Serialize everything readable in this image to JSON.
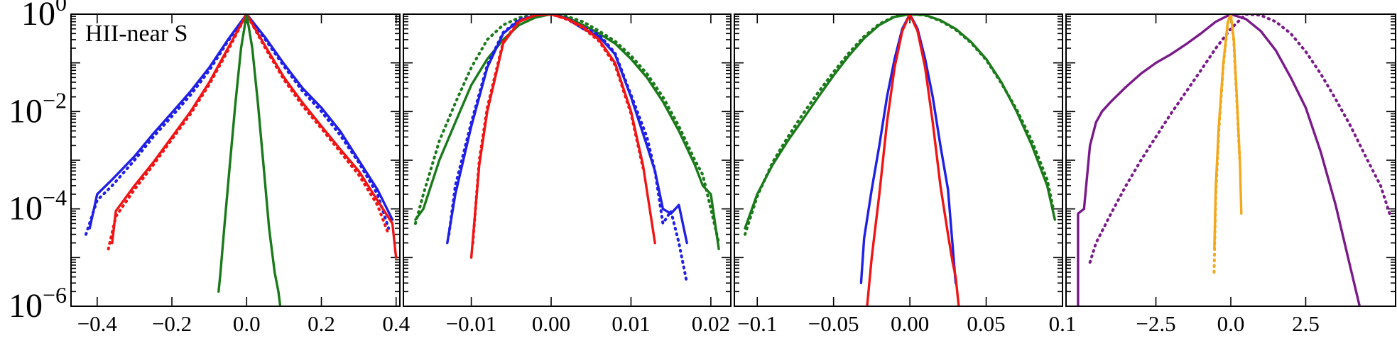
{
  "colors": {
    "blue": "#1f1fe6",
    "red": "#f01414",
    "green": "#1a7a1a",
    "purple": "#7a1a8a",
    "orange": "#f2a81d"
  },
  "chart_data": [
    {
      "type": "line",
      "panel": "1",
      "annotation": "HII-near S",
      "y_scale": "log",
      "ylim": [
        1e-06,
        1
      ],
      "xlim": [
        -0.47,
        0.41
      ],
      "y_ticks": [
        {
          "value": 1,
          "base": "10",
          "exp": "0"
        },
        {
          "value": 0.01,
          "base": "10",
          "exp": "−2"
        },
        {
          "value": 0.0001,
          "base": "10",
          "exp": "−4"
        },
        {
          "value": 1e-06,
          "base": "10",
          "exp": "−6"
        }
      ],
      "x_ticks": [
        {
          "value": -0.4,
          "label": "−0.4"
        },
        {
          "value": -0.2,
          "label": "−0.2"
        },
        {
          "value": 0.0,
          "label": "0.0"
        },
        {
          "value": 0.2,
          "label": "0.2"
        },
        {
          "value": 0.4,
          "label": "0.4"
        }
      ],
      "series": [
        {
          "color": "blue",
          "style": "solid",
          "x": [
            -0.42,
            -0.4,
            -0.36,
            -0.3,
            -0.25,
            -0.2,
            -0.15,
            -0.1,
            -0.05,
            0.0,
            0.05,
            0.1,
            0.15,
            0.2,
            0.25,
            0.3,
            0.35,
            0.39
          ],
          "y": [
            4e-05,
            0.0002,
            0.0004,
            0.0012,
            0.0035,
            0.0095,
            0.026,
            0.08,
            0.3,
            1,
            0.33,
            0.095,
            0.03,
            0.012,
            0.004,
            0.001,
            0.00025,
            6e-05
          ]
        },
        {
          "color": "blue",
          "style": "dotted",
          "x": [
            -0.43,
            -0.4,
            -0.36,
            -0.3,
            -0.25,
            -0.2,
            -0.15,
            -0.1,
            -0.05,
            0.0,
            0.05,
            0.1,
            0.15,
            0.2,
            0.25,
            0.3,
            0.35,
            0.38
          ],
          "y": [
            3e-05,
            0.00015,
            0.0003,
            0.001,
            0.003,
            0.008,
            0.022,
            0.07,
            0.28,
            1,
            0.3,
            0.085,
            0.026,
            0.01,
            0.0033,
            0.0009,
            0.0002,
            4e-05
          ]
        },
        {
          "color": "red",
          "style": "solid",
          "x": [
            -0.36,
            -0.35,
            -0.3,
            -0.25,
            -0.2,
            -0.15,
            -0.1,
            -0.05,
            0.0,
            0.05,
            0.1,
            0.15,
            0.2,
            0.25,
            0.3,
            0.35,
            0.39,
            0.4
          ],
          "y": [
            2e-05,
            9e-05,
            0.0003,
            0.0009,
            0.003,
            0.01,
            0.04,
            0.2,
            1,
            0.22,
            0.05,
            0.015,
            0.005,
            0.0017,
            0.0006,
            0.00015,
            5e-05,
            1e-05
          ]
        },
        {
          "color": "red",
          "style": "dotted",
          "x": [
            -0.37,
            -0.35,
            -0.3,
            -0.25,
            -0.2,
            -0.15,
            -0.1,
            -0.05,
            0.0,
            0.05,
            0.1,
            0.15,
            0.2,
            0.25,
            0.3,
            0.35,
            0.38
          ],
          "y": [
            1.5e-05,
            7e-05,
            0.00025,
            0.0008,
            0.0027,
            0.009,
            0.036,
            0.18,
            1,
            0.2,
            0.045,
            0.013,
            0.0045,
            0.0015,
            0.0005,
            0.00012,
            3e-05
          ]
        },
        {
          "color": "green",
          "style": "solid",
          "x": [
            -0.075,
            -0.07,
            -0.06,
            -0.045,
            -0.03,
            -0.015,
            0.0,
            0.015,
            0.03,
            0.045,
            0.06,
            0.07,
            0.075,
            0.085,
            0.09
          ],
          "y": [
            2e-06,
            5e-06,
            4e-05,
            0.0008,
            0.015,
            0.2,
            1,
            0.2,
            0.015,
            0.0008,
            4e-05,
            1e-05,
            5e-06,
            2e-06,
            1e-06
          ]
        }
      ]
    },
    {
      "type": "line",
      "panel": "2",
      "y_scale": "log",
      "ylim": [
        1e-06,
        1
      ],
      "xlim": [
        -0.0185,
        0.0225
      ],
      "x_ticks": [
        {
          "value": -0.01,
          "label": "−0.01"
        },
        {
          "value": 0.0,
          "label": "0.00"
        },
        {
          "value": 0.01,
          "label": "0.01"
        },
        {
          "value": 0.02,
          "label": "0.02"
        }
      ],
      "series": [
        {
          "color": "green",
          "style": "solid",
          "x": [
            -0.017,
            -0.016,
            -0.014,
            -0.012,
            -0.01,
            -0.008,
            -0.006,
            -0.004,
            -0.002,
            0.0,
            0.002,
            0.004,
            0.006,
            0.008,
            0.01,
            0.012,
            0.014,
            0.016,
            0.018,
            0.019,
            0.02,
            0.021
          ],
          "y": [
            6e-05,
            0.0001,
            0.001,
            0.006,
            0.035,
            0.12,
            0.3,
            0.6,
            0.85,
            1,
            0.85,
            0.6,
            0.4,
            0.25,
            0.12,
            0.05,
            0.016,
            0.004,
            0.0008,
            0.0003,
            0.0002,
            1.5e-05
          ]
        },
        {
          "color": "green",
          "style": "dotted",
          "x": [
            -0.017,
            -0.016,
            -0.014,
            -0.012,
            -0.01,
            -0.008,
            -0.006,
            -0.004,
            -0.002,
            0.0,
            0.002,
            0.004,
            0.006,
            0.008,
            0.01,
            0.012,
            0.014,
            0.016,
            0.018,
            0.019,
            0.02,
            0.021
          ],
          "y": [
            5e-05,
            0.0002,
            0.0025,
            0.015,
            0.08,
            0.3,
            0.6,
            0.85,
            0.98,
            1,
            0.9,
            0.7,
            0.45,
            0.28,
            0.14,
            0.06,
            0.02,
            0.005,
            0.001,
            0.0005,
            0.0001,
            2e-05
          ]
        },
        {
          "color": "blue",
          "style": "solid",
          "x": [
            -0.013,
            -0.012,
            -0.01,
            -0.008,
            -0.006,
            -0.004,
            -0.002,
            0.0,
            0.002,
            0.004,
            0.006,
            0.008,
            0.01,
            0.012,
            0.013,
            0.014,
            0.015,
            0.016,
            0.017
          ],
          "y": [
            2e-05,
            0.0002,
            0.005,
            0.08,
            0.4,
            0.75,
            0.95,
            1,
            0.8,
            0.5,
            0.35,
            0.15,
            0.02,
            0.002,
            0.0006,
            0.0001,
            8e-05,
            0.00012,
            2e-05
          ]
        },
        {
          "color": "blue",
          "style": "dotted",
          "x": [
            -0.0128,
            -0.012,
            -0.01,
            -0.008,
            -0.006,
            -0.004,
            -0.002,
            0.0,
            0.002,
            0.004,
            0.006,
            0.008,
            0.01,
            0.012,
            0.013,
            0.014,
            0.015,
            0.016,
            0.017
          ],
          "y": [
            3e-05,
            0.0003,
            0.006,
            0.09,
            0.42,
            0.78,
            0.96,
            1,
            0.82,
            0.55,
            0.38,
            0.16,
            0.022,
            0.003,
            0.0006,
            5e-05,
            9e-05,
            2e-05,
            3e-06
          ]
        },
        {
          "color": "red",
          "style": "solid",
          "x": [
            -0.01,
            -0.009,
            -0.008,
            -0.006,
            -0.004,
            -0.002,
            0.0,
            0.002,
            0.004,
            0.006,
            0.008,
            0.01,
            0.0115,
            0.013
          ],
          "y": [
            1e-05,
            0.0008,
            0.01,
            0.25,
            0.7,
            0.95,
            1,
            0.8,
            0.55,
            0.3,
            0.1,
            0.01,
            0.0008,
            2e-05
          ]
        },
        {
          "color": "red",
          "style": "dotted",
          "x": [
            -0.0098,
            -0.009,
            -0.008,
            -0.006,
            -0.004,
            -0.002,
            0.0,
            0.002,
            0.004,
            0.006,
            0.008,
            0.01,
            0.0115
          ],
          "y": [
            2e-05,
            0.001,
            0.012,
            0.27,
            0.72,
            0.96,
            1,
            0.78,
            0.52,
            0.28,
            0.09,
            0.009,
            0.0007
          ]
        }
      ]
    },
    {
      "type": "line",
      "panel": "3",
      "y_scale": "log",
      "ylim": [
        1e-06,
        1
      ],
      "xlim": [
        -0.115,
        0.1
      ],
      "x_ticks": [
        {
          "value": -0.1,
          "label": "−0.1"
        },
        {
          "value": -0.05,
          "label": "−0.05"
        },
        {
          "value": 0.0,
          "label": "0.00"
        },
        {
          "value": 0.05,
          "label": "0.05"
        },
        {
          "value": 0.1,
          "label": "0.1"
        }
      ],
      "series": [
        {
          "color": "green",
          "style": "solid",
          "x": [
            -0.108,
            -0.1,
            -0.09,
            -0.08,
            -0.07,
            -0.06,
            -0.05,
            -0.04,
            -0.03,
            -0.02,
            -0.01,
            0.0,
            0.01,
            0.02,
            0.03,
            0.04,
            0.05,
            0.06,
            0.07,
            0.08,
            0.09,
            0.095
          ],
          "y": [
            4e-05,
            0.0002,
            0.0008,
            0.0025,
            0.007,
            0.02,
            0.055,
            0.14,
            0.32,
            0.6,
            0.88,
            1,
            0.96,
            0.75,
            0.5,
            0.27,
            0.12,
            0.04,
            0.01,
            0.002,
            0.0003,
            6e-05
          ]
        },
        {
          "color": "green",
          "style": "dotted",
          "x": [
            -0.108,
            -0.1,
            -0.09,
            -0.08,
            -0.07,
            -0.06,
            -0.05,
            -0.04,
            -0.03,
            -0.02,
            -0.01,
            0.0,
            0.01,
            0.02,
            0.03,
            0.04,
            0.05,
            0.06,
            0.07,
            0.08,
            0.09,
            0.094
          ],
          "y": [
            3e-05,
            0.00018,
            0.0009,
            0.003,
            0.009,
            0.025,
            0.065,
            0.16,
            0.35,
            0.63,
            0.9,
            1,
            0.95,
            0.73,
            0.48,
            0.26,
            0.115,
            0.038,
            0.011,
            0.0025,
            0.0004,
            0.0001
          ]
        },
        {
          "color": "blue",
          "style": "solid",
          "x": [
            -0.032,
            -0.03,
            -0.025,
            -0.02,
            -0.015,
            -0.01,
            -0.005,
            0.0,
            0.005,
            0.01,
            0.015,
            0.02,
            0.025,
            0.03
          ],
          "y": [
            3e-06,
            2.5e-05,
            0.00025,
            0.002,
            0.02,
            0.12,
            0.5,
            1,
            0.5,
            0.12,
            0.02,
            0.002,
            0.00025,
            3e-06
          ]
        },
        {
          "color": "red",
          "style": "solid",
          "x": [
            -0.028,
            -0.025,
            -0.02,
            -0.015,
            -0.01,
            -0.005,
            0.0,
            0.005,
            0.01,
            0.015,
            0.02,
            0.025,
            0.028,
            0.03,
            0.032
          ],
          "y": [
            1e-06,
            1e-05,
            0.0002,
            0.006,
            0.08,
            0.45,
            1,
            0.45,
            0.08,
            0.006,
            0.0003,
            3e-05,
            8e-06,
            4e-06,
            1e-06
          ]
        }
      ]
    },
    {
      "type": "line",
      "panel": "4",
      "y_scale": "log",
      "ylim": [
        1e-06,
        1
      ],
      "xlim": [
        -5.5,
        5.5
      ],
      "x_ticks": [
        {
          "value": -2.5,
          "label": "−2.5"
        },
        {
          "value": 0.0,
          "label": "0.0"
        },
        {
          "value": 2.5,
          "label": "2.5"
        }
      ],
      "series": [
        {
          "color": "purple",
          "style": "solid",
          "x": [
            -5.1,
            -5.1,
            -4.9,
            -4.7,
            -4.5,
            -4.3,
            -4.0,
            -3.5,
            -3.0,
            -2.5,
            -2.0,
            -1.5,
            -1.0,
            -0.5,
            0.0,
            0.5,
            1.0,
            1.5,
            2.0,
            2.5,
            3.0,
            3.5,
            4.0,
            4.3
          ],
          "y": [
            1e-06,
            8e-05,
            0.0001,
            0.002,
            0.006,
            0.01,
            0.016,
            0.032,
            0.06,
            0.1,
            0.15,
            0.24,
            0.4,
            0.7,
            1,
            0.8,
            0.45,
            0.18,
            0.05,
            0.012,
            0.0015,
            0.00012,
            6e-06,
            1e-06
          ]
        },
        {
          "color": "purple",
          "style": "dotted",
          "x": [
            -4.7,
            -4.5,
            -4.0,
            -3.5,
            -3.0,
            -2.5,
            -2.0,
            -1.5,
            -1.0,
            -0.5,
            0.0,
            0.5,
            1.0,
            1.5,
            2.0,
            2.5,
            3.0,
            3.5,
            4.0,
            4.5,
            5.0,
            5.3
          ],
          "y": [
            8e-06,
            2e-05,
            8e-05,
            0.0003,
            0.001,
            0.003,
            0.009,
            0.025,
            0.07,
            0.2,
            0.5,
            1,
            0.95,
            0.7,
            0.4,
            0.17,
            0.06,
            0.018,
            0.005,
            0.0012,
            0.0003,
            8e-05
          ]
        },
        {
          "color": "orange",
          "style": "solid",
          "x": [
            -0.55,
            -0.5,
            -0.4,
            -0.25,
            -0.1,
            0.0,
            0.1,
            0.2,
            0.3,
            0.35
          ],
          "y": [
            1.5e-05,
            0.0003,
            0.005,
            0.1,
            0.7,
            1,
            0.3,
            0.02,
            0.001,
            8e-05
          ]
        },
        {
          "color": "orange",
          "style": "dotted",
          "x": [
            -0.56,
            -0.5,
            -0.4,
            -0.25,
            -0.1,
            0.0,
            0.1,
            0.2,
            0.3
          ],
          "y": [
            5e-06,
            0.0002,
            0.004,
            0.09,
            0.68,
            1,
            0.28,
            0.018,
            0.0009
          ]
        }
      ]
    }
  ]
}
